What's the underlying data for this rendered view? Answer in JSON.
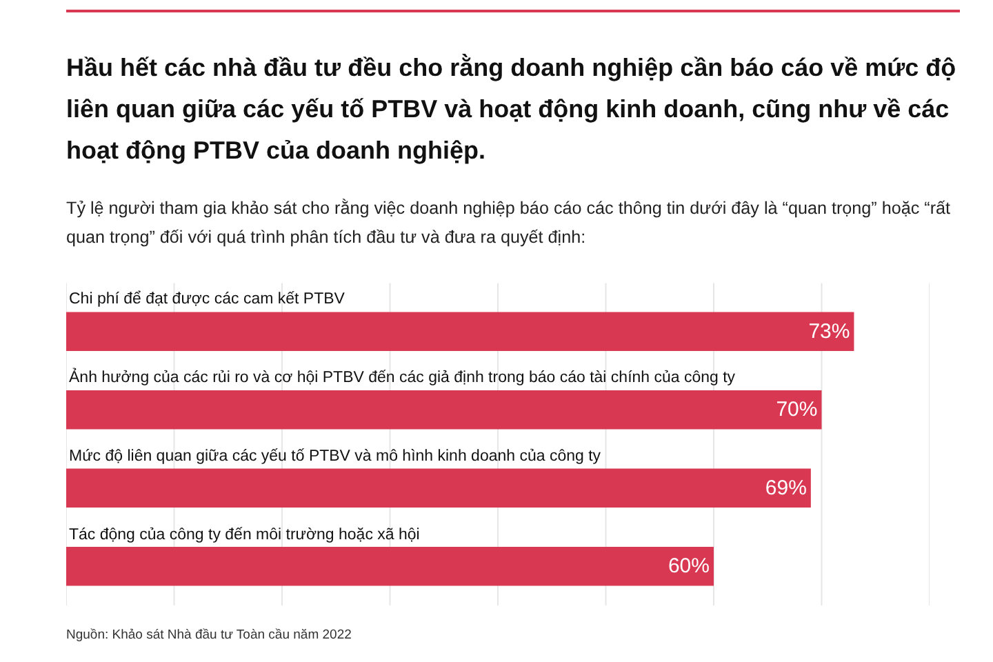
{
  "chart_data": {
    "type": "bar",
    "orientation": "horizontal",
    "title": "Hầu hết các nhà đầu tư đều cho rằng doanh nghiệp cần báo cáo về mức độ liên quan giữa các yếu tố PTBV và hoạt động kinh doanh, cũng như về các hoạt động PTBV của doanh nghiệp.",
    "subtitle": "Tỷ lệ người tham gia khảo sát cho rằng việc doanh nghiệp báo cáo các thông tin dưới đây là “quan trọng” hoặc “rất quan trọng” đối với quá trình phân tích đầu tư và đưa ra quyết định:",
    "categories": [
      "Chi phí để đạt được các cam kết PTBV",
      "Ảnh hưởng của các rủi ro và cơ hội PTBV đến các giả định trong báo cáo tài chính của công ty",
      "Mức độ liên quan giữa các yếu tố PTBV và mô hình kinh doanh của công ty",
      "Tác động của công ty đến môi trường hoặc xã hội"
    ],
    "values": [
      73,
      70,
      69,
      60
    ],
    "value_labels": [
      "73%",
      "70%",
      "69%",
      "60%"
    ],
    "color": "#d93852",
    "xlim": [
      0,
      80
    ],
    "xticks": [
      {
        "value": 0,
        "label": null
      },
      {
        "value": 10,
        "label": null
      },
      {
        "value": 20,
        "label": null
      },
      {
        "value": 30,
        "label": null
      },
      {
        "value": 40,
        "label": null
      },
      {
        "value": 50,
        "label": null
      },
      {
        "value": 60,
        "label": null
      },
      {
        "value": 70,
        "label": null
      },
      {
        "value": 80,
        "label": null
      }
    ],
    "grid": "x",
    "tick_labels": "y",
    "annotations": [
      "Nguồn: Khảo sát Nhà đầu tư Toàn cầu năm 2022"
    ]
  }
}
